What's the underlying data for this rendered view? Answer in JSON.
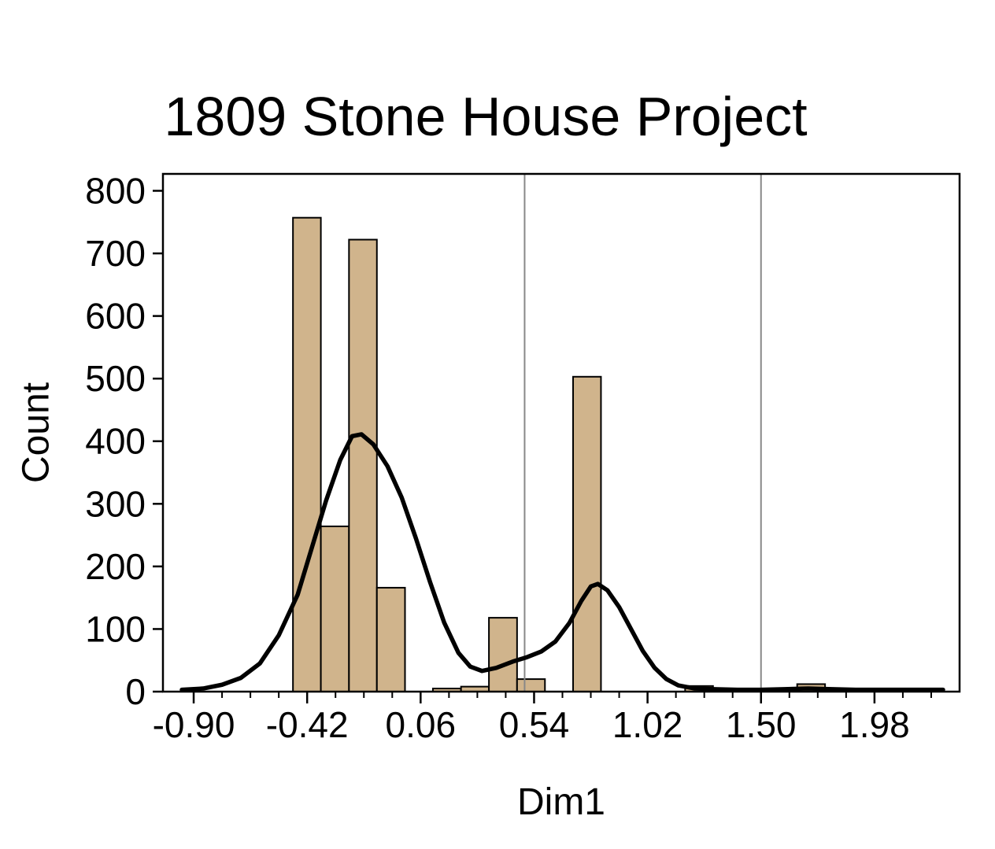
{
  "chart_data": {
    "type": "bar",
    "subtype": "histogram-with-density-curve",
    "title": "1809 Stone House Project",
    "xlabel": "Dim1",
    "ylabel": "Count",
    "xlim": [
      -1.03,
      2.34
    ],
    "ylim": [
      0,
      827
    ],
    "grid": "off",
    "legend": "none",
    "x_major_ticks": [
      {
        "value": -0.9,
        "label": "-0.90"
      },
      {
        "value": -0.42,
        "label": "-0.42"
      },
      {
        "value": 0.06,
        "label": "0.06"
      },
      {
        "value": 0.54,
        "label": "0.54"
      },
      {
        "value": 1.02,
        "label": "1.02"
      },
      {
        "value": 1.5,
        "label": "1.50"
      },
      {
        "value": 1.98,
        "label": "1.98"
      }
    ],
    "x_minor_ticks": {
      "start": -0.9,
      "step": 0.12,
      "end": 2.22
    },
    "y_ticks": [
      {
        "value": 0,
        "label": "0"
      },
      {
        "value": 100,
        "label": "100"
      },
      {
        "value": 200,
        "label": "200"
      },
      {
        "value": 300,
        "label": "300"
      },
      {
        "value": 400,
        "label": "400"
      },
      {
        "value": 500,
        "label": "500"
      },
      {
        "value": 600,
        "label": "600"
      },
      {
        "value": 700,
        "label": "700"
      },
      {
        "value": 800,
        "label": "800"
      }
    ],
    "bin_width": 0.1185,
    "bars": [
      {
        "x0": -0.48,
        "x1": -0.362,
        "count": 757
      },
      {
        "x0": -0.362,
        "x1": -0.243,
        "count": 264
      },
      {
        "x0": -0.243,
        "x1": -0.125,
        "count": 722
      },
      {
        "x0": -0.125,
        "x1": -0.006,
        "count": 166
      },
      {
        "x0": 0.112,
        "x1": 0.231,
        "count": 5
      },
      {
        "x0": 0.231,
        "x1": 0.349,
        "count": 8
      },
      {
        "x0": 0.349,
        "x1": 0.468,
        "count": 118
      },
      {
        "x0": 0.468,
        "x1": 0.586,
        "count": 20
      },
      {
        "x0": 0.705,
        "x1": 0.823,
        "count": 503
      },
      {
        "x0": 1.179,
        "x1": 1.297,
        "count": 9
      },
      {
        "x0": 1.653,
        "x1": 1.771,
        "count": 12
      }
    ],
    "reference_lines_x": [
      0.5,
      1.5
    ],
    "density_curve": [
      [
        -0.95,
        3
      ],
      [
        -0.86,
        5
      ],
      [
        -0.78,
        11
      ],
      [
        -0.7,
        22
      ],
      [
        -0.62,
        45
      ],
      [
        -0.54,
        90
      ],
      [
        -0.46,
        155
      ],
      [
        -0.4,
        230
      ],
      [
        -0.34,
        305
      ],
      [
        -0.28,
        370
      ],
      [
        -0.23,
        408
      ],
      [
        -0.19,
        411
      ],
      [
        -0.14,
        395
      ],
      [
        -0.08,
        360
      ],
      [
        -0.02,
        310
      ],
      [
        0.04,
        245
      ],
      [
        0.1,
        175
      ],
      [
        0.16,
        110
      ],
      [
        0.22,
        62
      ],
      [
        0.27,
        40
      ],
      [
        0.32,
        33
      ],
      [
        0.38,
        38
      ],
      [
        0.45,
        48
      ],
      [
        0.51,
        55
      ],
      [
        0.57,
        64
      ],
      [
        0.63,
        80
      ],
      [
        0.69,
        110
      ],
      [
        0.74,
        145
      ],
      [
        0.78,
        168
      ],
      [
        0.81,
        172
      ],
      [
        0.85,
        162
      ],
      [
        0.9,
        135
      ],
      [
        0.95,
        100
      ],
      [
        1.0,
        65
      ],
      [
        1.05,
        38
      ],
      [
        1.1,
        20
      ],
      [
        1.15,
        10
      ],
      [
        1.22,
        5
      ],
      [
        1.3,
        4
      ],
      [
        1.4,
        3
      ],
      [
        1.5,
        3
      ],
      [
        1.6,
        4
      ],
      [
        1.7,
        5
      ],
      [
        1.8,
        4
      ],
      [
        1.9,
        3
      ],
      [
        2.0,
        3
      ],
      [
        2.1,
        3
      ],
      [
        2.27,
        3
      ]
    ],
    "colors": {
      "bar_fill": "#D0B48C",
      "bar_edge": "#000000",
      "curve": "#000000",
      "reference_line": "#888888",
      "axis": "#000000",
      "background": "#ffffff"
    }
  }
}
